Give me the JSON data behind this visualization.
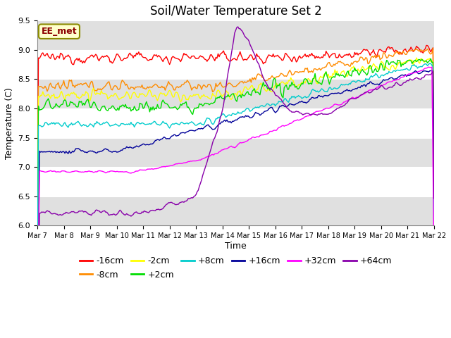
{
  "title": "Soil/Water Temperature Set 2",
  "xlabel": "Time",
  "ylabel": "Temperature (C)",
  "ylim": [
    6.0,
    9.5
  ],
  "xlim": [
    0,
    360
  ],
  "series_labels": [
    "-16cm",
    "-8cm",
    "-2cm",
    "+2cm",
    "+8cm",
    "+16cm",
    "+32cm",
    "+64cm"
  ],
  "series_colors": [
    "#ff0000",
    "#ff8c00",
    "#ffff00",
    "#00dd00",
    "#00cccc",
    "#000099",
    "#ff00ff",
    "#8800aa"
  ],
  "x_tick_labels": [
    "Mar 7",
    "Mar 8",
    "Mar 9",
    "Mar 10",
    "Mar 11",
    "Mar 12",
    "Mar 13",
    "Mar 14",
    "Mar 15",
    "Mar 16",
    "Mar 17",
    "Mar 18",
    "Mar 19",
    "Mar 20",
    "Mar 21",
    "Mar 22"
  ],
  "annotation_text": "EE_met",
  "bg_color": "#ffffff",
  "band_color": "#e0e0e0",
  "legend_fontsize": 9,
  "title_fontsize": 12
}
